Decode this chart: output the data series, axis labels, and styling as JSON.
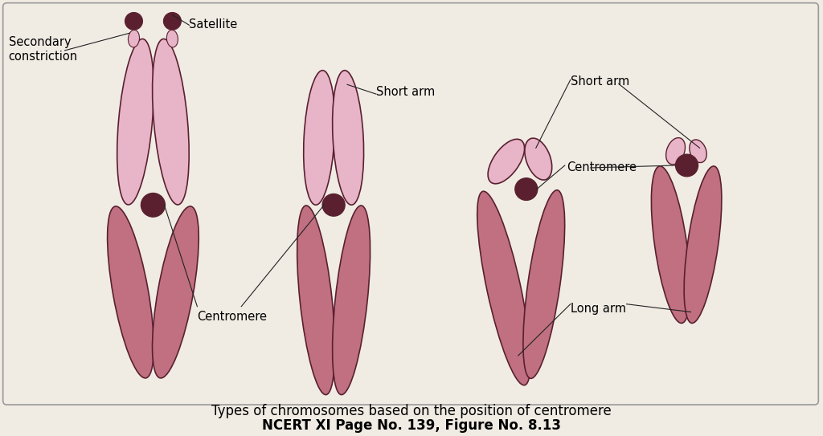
{
  "bg_color": "#f0ece4",
  "arm_fill_light": "#e8b4c8",
  "arm_fill_dark": "#c07080",
  "centromere_color": "#5a2030",
  "arm_edge": "#5a2030",
  "title1": "Types of chromosomes based on the position of centromere",
  "title2": "NCERT XI Page No. 139, Figure No. 8.13",
  "label_secondary": "Secondary\nconstriction",
  "label_satellite": "Satellite",
  "label_centromere1": "Centromere",
  "label_centromere2": "Centromere",
  "label_short_arm1": "Short arm",
  "label_short_arm2": "Short arm",
  "label_long_arm": "Long arm",
  "font_size_labels": 10.5,
  "font_size_title1": 12,
  "font_size_title2": 12
}
